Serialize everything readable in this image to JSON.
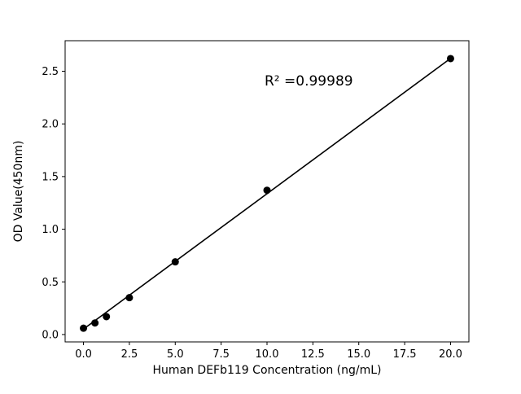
{
  "figure": {
    "background": "#ffffff"
  },
  "chart_data": {
    "type": "scatter",
    "title": "",
    "xlabel": "Human DEFb119 Concentration (ng/mL)",
    "ylabel": "OD Value(450nm)",
    "annotation": {
      "text": "R² =0.99989",
      "x": 10.1,
      "y": 2.38
    },
    "r_squared": 0.99989,
    "points": {
      "x": [
        0,
        0.625,
        1.25,
        2.5,
        5,
        10,
        20
      ],
      "y": [
        0.06,
        0.11,
        0.17,
        0.35,
        0.69,
        1.37,
        2.62
      ]
    },
    "fit_line": {
      "slope": 0.1285,
      "intercept": 0.052,
      "x_start": 0,
      "x_end": 20
    },
    "xlim": [
      -1,
      21
    ],
    "ylim": [
      -0.07,
      2.79
    ],
    "xticks": [
      0,
      2.5,
      5,
      7.5,
      10,
      12.5,
      15,
      17.5,
      20
    ],
    "xtick_labels": [
      "0.0",
      "2.5",
      "5.0",
      "7.5",
      "10.0",
      "12.5",
      "15.0",
      "17.5",
      "20.0"
    ],
    "yticks": [
      0,
      0.5,
      1,
      1.5,
      2,
      2.5
    ],
    "ytick_labels": [
      "0.0",
      "0.5",
      "1.0",
      "1.5",
      "2.0",
      "2.5"
    ],
    "marker_color": "#000000",
    "line_color": "#000000",
    "grid": false,
    "legend": null
  }
}
